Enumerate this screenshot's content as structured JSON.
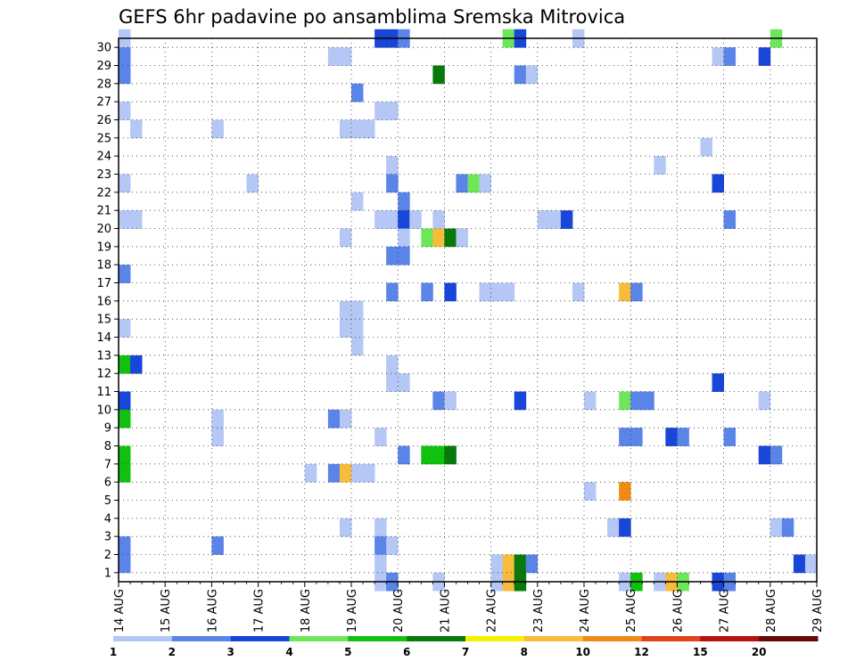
{
  "chart_data": {
    "type": "heatmap",
    "title": "GEFS 6hr padavine po ansamblima Sremska Mitrovica",
    "x_labels": [
      "14 AUG",
      "15 AUG",
      "16 AUG",
      "17 AUG",
      "18 AUG",
      "19 AUG",
      "20 AUG",
      "21 AUG",
      "22 AUG",
      "23 AUG",
      "24 AUG",
      "25 AUG",
      "26 AUG",
      "27 AUG",
      "28 AUG",
      "29 AUG"
    ],
    "y_labels": [
      "1",
      "2",
      "3",
      "4",
      "5",
      "6",
      "7",
      "8",
      "9",
      "10",
      "11",
      "12",
      "13",
      "14",
      "15",
      "16",
      "17",
      "18",
      "19",
      "20",
      "21",
      "22",
      "23",
      "24",
      "25",
      "26",
      "27",
      "28",
      "29",
      "30"
    ],
    "x_unit": "6-hour step from 14 AUG 00Z",
    "xlim": [
      0,
      60
    ],
    "ylim": [
      0,
      30
    ],
    "grid": true,
    "levels": [
      "1",
      "2",
      "3",
      "4",
      "5",
      "6",
      "7",
      "8",
      "10",
      "12",
      "15",
      "20"
    ],
    "level_colors": [
      "#b4c7f5",
      "#5a84e8",
      "#1746d8",
      "#6ee65a",
      "#10c20e",
      "#087a0c",
      "#f7f100",
      "#f8bc3c",
      "#f08a12",
      "#e0421a",
      "#b3150e",
      "#6a0a06"
    ],
    "cells": [
      [
        0,
        30,
        1
      ],
      [
        0,
        29,
        2
      ],
      [
        0,
        28,
        2
      ],
      [
        0,
        26,
        1
      ],
      [
        0,
        22,
        1
      ],
      [
        0,
        20,
        1
      ],
      [
        0,
        17,
        2
      ],
      [
        0,
        14,
        1
      ],
      [
        0,
        12,
        5
      ],
      [
        0,
        10,
        3
      ],
      [
        0,
        9,
        5
      ],
      [
        0,
        7,
        5
      ],
      [
        0,
        6,
        5
      ],
      [
        0,
        2,
        2
      ],
      [
        0,
        1,
        2
      ],
      [
        1,
        25,
        1
      ],
      [
        1,
        20,
        1
      ],
      [
        1,
        12,
        3
      ],
      [
        8,
        25,
        1
      ],
      [
        8,
        9,
        1
      ],
      [
        8,
        8,
        1
      ],
      [
        8,
        2,
        2
      ],
      [
        11,
        22,
        1
      ],
      [
        16,
        6,
        1
      ],
      [
        18,
        29,
        1
      ],
      [
        18,
        9,
        2
      ],
      [
        18,
        6,
        2
      ],
      [
        19,
        29,
        1
      ],
      [
        19,
        25,
        1
      ],
      [
        19,
        19,
        1
      ],
      [
        19,
        15,
        1
      ],
      [
        19,
        14,
        1
      ],
      [
        19,
        9,
        1
      ],
      [
        19,
        6,
        8
      ],
      [
        19,
        3,
        1
      ],
      [
        20,
        27,
        2
      ],
      [
        20,
        25,
        1
      ],
      [
        20,
        21,
        1
      ],
      [
        20,
        15,
        1
      ],
      [
        20,
        14,
        1
      ],
      [
        20,
        13,
        1
      ],
      [
        20,
        6,
        1
      ],
      [
        21,
        25,
        1
      ],
      [
        21,
        6,
        1
      ],
      [
        22,
        30,
        3
      ],
      [
        22,
        26,
        1
      ],
      [
        22,
        20,
        1
      ],
      [
        22,
        8,
        1
      ],
      [
        22,
        3,
        1
      ],
      [
        22,
        2,
        2
      ],
      [
        22,
        1,
        1
      ],
      [
        22,
        0,
        1
      ],
      [
        23,
        30,
        3
      ],
      [
        23,
        26,
        1
      ],
      [
        23,
        23,
        1
      ],
      [
        23,
        22,
        2
      ],
      [
        23,
        20,
        1
      ],
      [
        23,
        18,
        2
      ],
      [
        23,
        16,
        2
      ],
      [
        23,
        12,
        1
      ],
      [
        23,
        11,
        1
      ],
      [
        23,
        2,
        1
      ],
      [
        23,
        0,
        2
      ],
      [
        24,
        30,
        2
      ],
      [
        24,
        21,
        2
      ],
      [
        24,
        20,
        3
      ],
      [
        24,
        19,
        1
      ],
      [
        24,
        18,
        2
      ],
      [
        24,
        11,
        1
      ],
      [
        24,
        7,
        2
      ],
      [
        25,
        20,
        1
      ],
      [
        26,
        19,
        4
      ],
      [
        26,
        16,
        2
      ],
      [
        26,
        7,
        5
      ],
      [
        27,
        28,
        6
      ],
      [
        27,
        20,
        1
      ],
      [
        27,
        19,
        8
      ],
      [
        27,
        10,
        2
      ],
      [
        27,
        7,
        5
      ],
      [
        27,
        0,
        1
      ],
      [
        28,
        19,
        6
      ],
      [
        28,
        16,
        3
      ],
      [
        28,
        10,
        1
      ],
      [
        28,
        7,
        6
      ],
      [
        29,
        22,
        2
      ],
      [
        29,
        19,
        1
      ],
      [
        30,
        22,
        4
      ],
      [
        31,
        22,
        1
      ],
      [
        31,
        16,
        1
      ],
      [
        32,
        16,
        1
      ],
      [
        32,
        1,
        1
      ],
      [
        32,
        0,
        1
      ],
      [
        33,
        30,
        4
      ],
      [
        33,
        16,
        1
      ],
      [
        33,
        1,
        8
      ],
      [
        33,
        0,
        8
      ],
      [
        34,
        30,
        3
      ],
      [
        34,
        28,
        2
      ],
      [
        34,
        10,
        3
      ],
      [
        34,
        1,
        6
      ],
      [
        34,
        0,
        6
      ],
      [
        35,
        28,
        1
      ],
      [
        35,
        1,
        2
      ],
      [
        36,
        20,
        1
      ],
      [
        37,
        20,
        1
      ],
      [
        38,
        20,
        3
      ],
      [
        39,
        30,
        1
      ],
      [
        39,
        16,
        1
      ],
      [
        40,
        10,
        1
      ],
      [
        40,
        5,
        1
      ],
      [
        42,
        3,
        1
      ],
      [
        43,
        16,
        8
      ],
      [
        43,
        10,
        4
      ],
      [
        43,
        8,
        2
      ],
      [
        43,
        5,
        9
      ],
      [
        43,
        3,
        3
      ],
      [
        43,
        0,
        1
      ],
      [
        44,
        16,
        2
      ],
      [
        44,
        10,
        2
      ],
      [
        44,
        8,
        2
      ],
      [
        44,
        0,
        5
      ],
      [
        45,
        10,
        2
      ],
      [
        46,
        23,
        1
      ],
      [
        46,
        0,
        1
      ],
      [
        47,
        8,
        3
      ],
      [
        47,
        0,
        8
      ],
      [
        48,
        8,
        2
      ],
      [
        48,
        0,
        4
      ],
      [
        50,
        24,
        1
      ],
      [
        51,
        29,
        1
      ],
      [
        51,
        22,
        3
      ],
      [
        51,
        11,
        3
      ],
      [
        51,
        0,
        3
      ],
      [
        52,
        29,
        2
      ],
      [
        52,
        20,
        2
      ],
      [
        52,
        8,
        2
      ],
      [
        52,
        0,
        2
      ],
      [
        55,
        29,
        3
      ],
      [
        55,
        10,
        1
      ],
      [
        55,
        7,
        3
      ],
      [
        56,
        30,
        4
      ],
      [
        56,
        7,
        2
      ],
      [
        56,
        3,
        1
      ],
      [
        57,
        3,
        2
      ],
      [
        58,
        1,
        3
      ],
      [
        59,
        1,
        1
      ],
      [
        55,
        0,
        0
      ]
    ]
  }
}
